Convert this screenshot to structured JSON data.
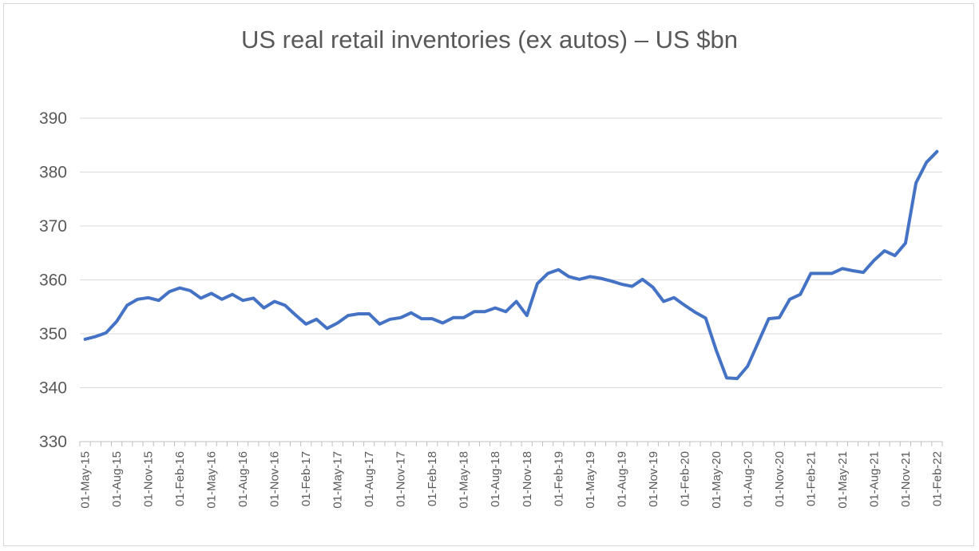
{
  "chart_data": {
    "type": "line",
    "title": "US real retail inventories (ex autos) – US $bn",
    "xlabel": "",
    "ylabel": "",
    "ylim": [
      330,
      390
    ],
    "yticks": [
      330,
      340,
      350,
      360,
      370,
      380,
      390
    ],
    "grid": true,
    "legend": "none",
    "line_color": "#4472c4",
    "x_tick_labels": [
      "01-May-15",
      "01-Aug-15",
      "01-Nov-15",
      "01-Feb-16",
      "01-May-16",
      "01-Aug-16",
      "01-Nov-16",
      "01-Feb-17",
      "01-May-17",
      "01-Aug-17",
      "01-Nov-17",
      "01-Feb-18",
      "01-May-18",
      "01-Aug-18",
      "01-Nov-18",
      "01-Feb-19",
      "01-May-19",
      "01-Aug-19",
      "01-Nov-19",
      "01-Feb-20",
      "01-May-20",
      "01-Aug-20",
      "01-Nov-20",
      "01-Feb-21",
      "01-May-21",
      "01-Aug-21",
      "01-Nov-21",
      "01-Feb-22"
    ],
    "x": [
      "2015-05",
      "2015-06",
      "2015-07",
      "2015-08",
      "2015-09",
      "2015-10",
      "2015-11",
      "2015-12",
      "2016-01",
      "2016-02",
      "2016-03",
      "2016-04",
      "2016-05",
      "2016-06",
      "2016-07",
      "2016-08",
      "2016-09",
      "2016-10",
      "2016-11",
      "2016-12",
      "2017-01",
      "2017-02",
      "2017-03",
      "2017-04",
      "2017-05",
      "2017-06",
      "2017-07",
      "2017-08",
      "2017-09",
      "2017-10",
      "2017-11",
      "2017-12",
      "2018-01",
      "2018-02",
      "2018-03",
      "2018-04",
      "2018-05",
      "2018-06",
      "2018-07",
      "2018-08",
      "2018-09",
      "2018-10",
      "2018-11",
      "2018-12",
      "2019-01",
      "2019-02",
      "2019-03",
      "2019-04",
      "2019-05",
      "2019-06",
      "2019-07",
      "2019-08",
      "2019-09",
      "2019-10",
      "2019-11",
      "2019-12",
      "2020-01",
      "2020-02",
      "2020-03",
      "2020-04",
      "2020-05",
      "2020-06",
      "2020-07",
      "2020-08",
      "2020-09",
      "2020-10",
      "2020-11",
      "2020-12",
      "2021-01",
      "2021-02",
      "2021-03",
      "2021-04",
      "2021-05",
      "2021-06",
      "2021-07",
      "2021-08",
      "2021-09",
      "2021-10",
      "2021-11",
      "2021-12",
      "2022-01",
      "2022-02"
    ],
    "values": [
      349.0,
      349.5,
      350.2,
      352.3,
      355.3,
      356.4,
      356.7,
      356.2,
      357.8,
      358.5,
      358.0,
      356.6,
      357.5,
      356.4,
      357.3,
      356.2,
      356.6,
      354.8,
      356.0,
      355.3,
      353.5,
      351.8,
      352.7,
      351.0,
      352.0,
      353.4,
      353.7,
      353.7,
      351.8,
      352.7,
      353.0,
      353.9,
      352.8,
      352.8,
      352.0,
      353.0,
      353.0,
      354.1,
      354.1,
      354.8,
      354.1,
      356.0,
      353.4,
      359.3,
      361.2,
      361.9,
      360.6,
      360.1,
      360.6,
      360.3,
      359.8,
      359.2,
      358.8,
      360.1,
      358.6,
      356.0,
      356.7,
      355.3,
      354.0,
      352.9,
      347.0,
      341.8,
      341.7,
      344.0,
      348.4,
      352.8,
      353.0,
      356.4,
      357.3,
      361.2,
      361.2,
      361.2,
      362.1,
      361.7,
      361.4,
      363.6,
      365.4,
      364.5,
      366.8,
      378.0,
      381.8,
      383.8
    ]
  }
}
